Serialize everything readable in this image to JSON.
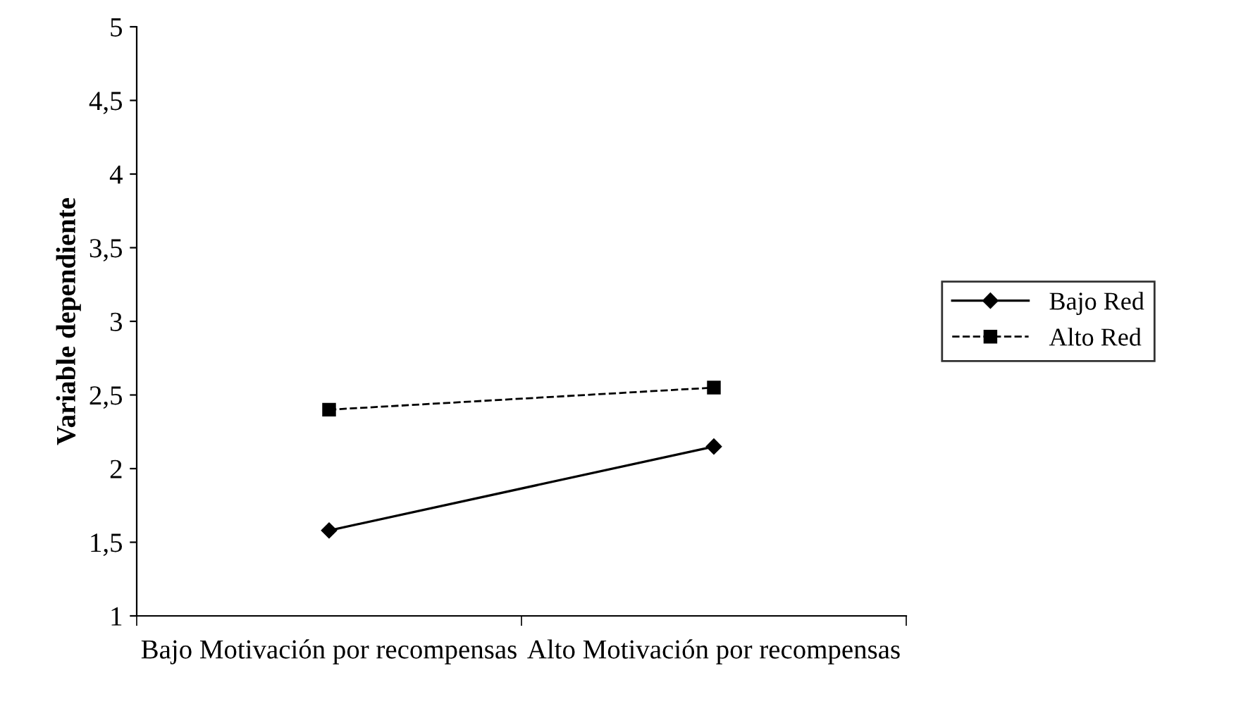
{
  "chart_data": {
    "type": "line",
    "ylabel": "Variable dependiente",
    "categories": [
      "Bajo Motivación por recompensas",
      "Alto Motivación por recompensas"
    ],
    "series": [
      {
        "name": "Bajo Red",
        "color": "#000000",
        "values": [
          1.58,
          2.15
        ],
        "marker": "diamond",
        "line_style": "solid"
      },
      {
        "name": "Alto Red",
        "color": "#000000",
        "values": [
          2.4,
          2.55
        ],
        "marker": "square",
        "line_style": "dashed"
      }
    ],
    "ylim": [
      1,
      5
    ],
    "yticks": [
      1,
      {
        "value": 1.5,
        "label": "1,5"
      },
      2,
      {
        "value": 2.5,
        "label": "2,5"
      },
      3,
      {
        "value": 3.5,
        "label": "3,5"
      },
      4,
      {
        "value": 4.5,
        "label": "4,5"
      },
      5
    ],
    "grid": false,
    "legend": "right"
  }
}
